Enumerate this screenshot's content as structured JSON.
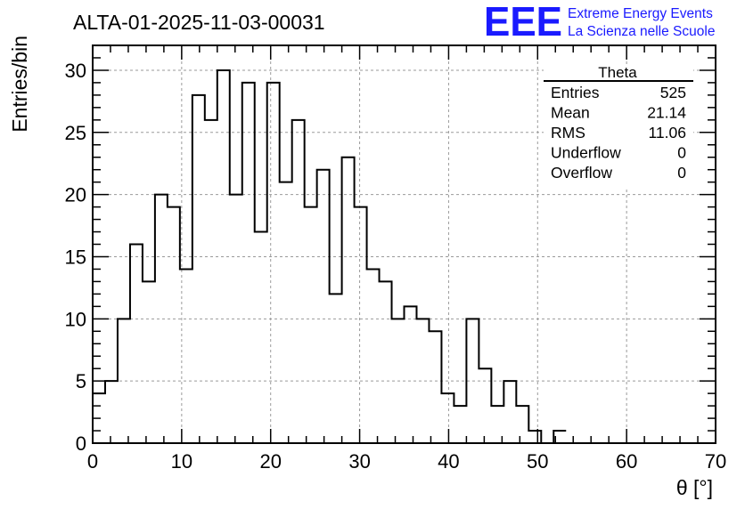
{
  "header": {
    "run_title": "ALTA-01-2025-11-03-00031",
    "logo_text": "EEE",
    "logo_line1": "Extreme Energy Events",
    "logo_line2": "La Scienza nelle Scuole"
  },
  "stats": {
    "title": "Theta",
    "rows": [
      {
        "label": "Entries",
        "value": "525"
      },
      {
        "label": "Mean",
        "value": "21.14"
      },
      {
        "label": "RMS",
        "value": "11.06"
      },
      {
        "label": "Underflow",
        "value": "0"
      },
      {
        "label": "Overflow",
        "value": "0"
      }
    ]
  },
  "colors": {
    "logo": "#1a1aff",
    "grid": "#9a9a9a",
    "line": "#000000"
  },
  "chart_data": {
    "type": "bar",
    "style": "step-histogram",
    "title": "ALTA-01-2025-11-03-00031",
    "xlabel": "θ [°]",
    "ylabel": "Entries/bin",
    "xlim": [
      0,
      70
    ],
    "ylim": [
      0,
      32
    ],
    "bin_width": 1.4,
    "bin_start": 0,
    "x_ticks": [
      0,
      10,
      20,
      30,
      40,
      50,
      60,
      70
    ],
    "y_ticks": [
      0,
      5,
      10,
      15,
      20,
      25,
      30
    ],
    "grid": true,
    "values": [
      4,
      5,
      10,
      16,
      13,
      20,
      19,
      14,
      28,
      26,
      30,
      20,
      29,
      17,
      29,
      21,
      26,
      19,
      22,
      12,
      23,
      19,
      14,
      13,
      10,
      11,
      10,
      9,
      4,
      3,
      10,
      6,
      3,
      5,
      3,
      1,
      0,
      1
    ]
  }
}
